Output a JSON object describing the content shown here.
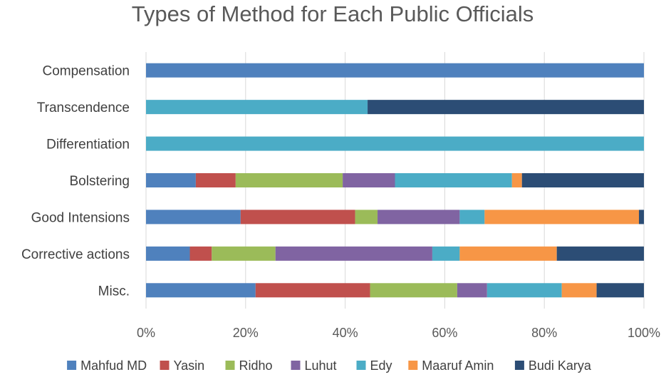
{
  "chart_data": {
    "type": "bar",
    "orientation": "horizontal",
    "stacked": "percent",
    "title": "Types of Method for Each Public Officials",
    "xlabel": "",
    "ylabel": "",
    "xlim": [
      0,
      100
    ],
    "x_ticks": [
      "0%",
      "20%",
      "40%",
      "60%",
      "80%",
      "100%"
    ],
    "grid": true,
    "legend_position": "bottom",
    "categories": [
      "Compensation",
      "Transcendence",
      "Differentiation",
      "Bolstering",
      "Good Intensions",
      "Corrective actions",
      "Misc."
    ],
    "series": [
      {
        "name": "Mahfud MD",
        "color": "#4f81bd",
        "values": [
          100,
          0,
          0,
          10,
          19,
          8.8,
          22
        ]
      },
      {
        "name": "Yasin",
        "color": "#c0504d",
        "values": [
          0,
          0,
          0,
          8,
          23,
          4.4,
          23
        ]
      },
      {
        "name": "Ridho",
        "color": "#9bbb59",
        "values": [
          0,
          0,
          0,
          21.5,
          4.5,
          12.8,
          17.5
        ]
      },
      {
        "name": "Luhut",
        "color": "#8064a2",
        "values": [
          0,
          0,
          0,
          10.5,
          16.5,
          31.5,
          6
        ]
      },
      {
        "name": "Edy",
        "color": "#4bacc6",
        "values": [
          0,
          44.5,
          100,
          23.5,
          5,
          5.5,
          15
        ]
      },
      {
        "name": "Maaruf Amin",
        "color": "#f79646",
        "values": [
          0,
          0,
          0,
          2,
          31,
          19.5,
          7
        ]
      },
      {
        "name": "Budi Karya",
        "color": "#2c4d75",
        "values": [
          0,
          55.5,
          0,
          24.5,
          1,
          17.5,
          9.5
        ]
      }
    ]
  }
}
